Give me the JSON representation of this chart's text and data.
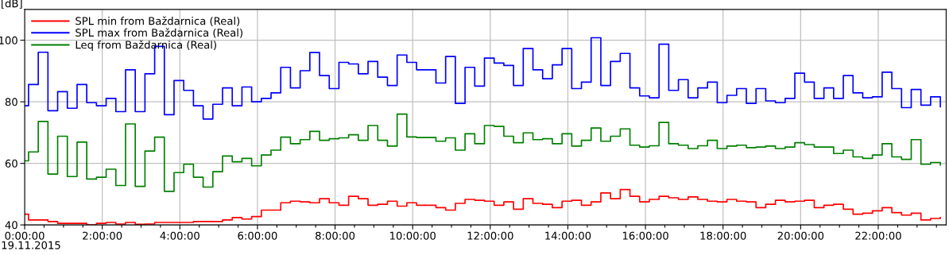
{
  "chart_data": {
    "type": "step",
    "ylabel": "[dB]",
    "annotations": [
      "19.11.2015"
    ],
    "x": [
      0,
      0.1,
      0.35,
      0.6,
      0.85,
      1.1,
      1.35,
      1.6,
      1.85,
      2.1,
      2.35,
      2.6,
      2.85,
      3.1,
      3.35,
      3.6,
      3.85,
      4.1,
      4.35,
      4.6,
      4.85,
      5.1,
      5.35,
      5.6,
      5.85,
      6.1,
      6.35,
      6.6,
      6.85,
      7.1,
      7.35,
      7.6,
      7.85,
      8.1,
      8.35,
      8.6,
      8.85,
      9.1,
      9.35,
      9.6,
      9.85,
      10.1,
      10.35,
      10.6,
      10.85,
      11.1,
      11.35,
      11.6,
      11.85,
      12.1,
      12.35,
      12.6,
      12.85,
      13.1,
      13.35,
      13.6,
      13.85,
      14.1,
      14.35,
      14.6,
      14.85,
      15.1,
      15.35,
      15.6,
      15.85,
      16.1,
      16.35,
      16.6,
      16.85,
      17.1,
      17.35,
      17.6,
      17.85,
      18.1,
      18.35,
      18.6,
      18.85,
      19.1,
      19.35,
      19.6,
      19.85,
      20.1,
      20.35,
      20.6,
      20.85,
      21.1,
      21.35,
      21.6,
      21.85,
      22.1,
      22.35,
      22.6,
      22.85,
      23.1,
      23.35,
      23.6
    ],
    "series": [
      {
        "name": "SPL min from Baždarnica (Real)",
        "color": "#ff0000",
        "values": [
          43.5,
          41.6,
          41.6,
          41.1,
          40.5,
          40.5,
          40.5,
          40.0,
          40.5,
          40.8,
          40.3,
          40.8,
          40.2,
          40.3,
          40.8,
          40.8,
          40.8,
          40.8,
          41.1,
          41.1,
          41.1,
          41.6,
          42.4,
          41.9,
          42.7,
          44.8,
          44.8,
          47.2,
          47.7,
          47.5,
          47.2,
          48.5,
          47.2,
          46.4,
          49.3,
          48.5,
          46.4,
          46.7,
          47.7,
          46.1,
          47.2,
          46.4,
          46.4,
          45.6,
          44.8,
          47.0,
          48.3,
          48.0,
          47.7,
          46.4,
          47.5,
          45.1,
          48.5,
          47.0,
          46.7,
          45.6,
          47.7,
          48.0,
          46.4,
          47.5,
          50.4,
          48.5,
          51.5,
          49.3,
          47.5,
          48.3,
          49.3,
          48.8,
          48.3,
          49.1,
          48.3,
          47.7,
          47.5,
          48.3,
          47.7,
          47.5,
          45.6,
          46.7,
          48.0,
          47.5,
          47.7,
          48.0,
          45.6,
          46.4,
          46.7,
          45.1,
          43.5,
          43.8,
          44.6,
          45.6,
          44.0,
          43.2,
          43.8,
          41.6,
          42.1,
          42.4
        ]
      },
      {
        "name": "SPL max from Baždarnica (Real)",
        "color": "#0000ff",
        "values": [
          78.7,
          85.6,
          96.1,
          77.1,
          83.3,
          77.9,
          85.6,
          79.7,
          78.7,
          81.1,
          76.8,
          90.4,
          76.8,
          89.1,
          98.0,
          75.8,
          86.9,
          83.7,
          78.7,
          74.4,
          79.2,
          84.5,
          78.7,
          84.8,
          80.0,
          81.1,
          82.9,
          91.2,
          84.5,
          90.1,
          96.0,
          88.5,
          84.3,
          92.8,
          92.3,
          89.1,
          93.1,
          88.0,
          85.3,
          95.2,
          92.8,
          90.4,
          90.4,
          86.1,
          94.7,
          79.5,
          91.2,
          85.1,
          94.2,
          92.6,
          91.8,
          85.3,
          97.3,
          90.4,
          87.5,
          92.0,
          97.3,
          84.3,
          86.4,
          100.8,
          85.3,
          93.1,
          95.7,
          84.5,
          81.9,
          81.3,
          98.7,
          83.7,
          87.2,
          81.3,
          84.5,
          86.4,
          79.7,
          82.1,
          84.3,
          79.5,
          84.3,
          80.3,
          79.7,
          81.1,
          89.3,
          86.4,
          81.1,
          84.5,
          81.1,
          88.5,
          82.9,
          81.3,
          81.6,
          89.6,
          84.3,
          78.1,
          84.0,
          78.9,
          81.6,
          78.4
        ]
      },
      {
        "name": "Leq from Baždarnica (Real)",
        "color": "#008000",
        "values": [
          60.8,
          63.7,
          73.6,
          56.5,
          68.8,
          55.7,
          66.9,
          54.9,
          55.5,
          58.1,
          52.8,
          72.8,
          52.5,
          64.0,
          68.5,
          50.9,
          57.0,
          59.7,
          55.5,
          52.3,
          57.3,
          62.4,
          60.5,
          61.6,
          59.2,
          62.7,
          64.3,
          68.5,
          66.4,
          67.7,
          70.4,
          67.5,
          68.0,
          68.3,
          69.3,
          67.5,
          72.3,
          67.5,
          65.6,
          76.0,
          68.6,
          68.4,
          68.4,
          67.2,
          68.3,
          64.3,
          69.6,
          66.4,
          72.3,
          72.0,
          68.8,
          66.7,
          69.9,
          67.7,
          68.0,
          66.4,
          69.6,
          65.6,
          67.5,
          71.5,
          67.2,
          68.8,
          71.2,
          65.9,
          65.3,
          65.7,
          73.3,
          66.4,
          65.9,
          64.8,
          65.7,
          67.5,
          64.8,
          65.6,
          65.9,
          65.1,
          65.3,
          65.6,
          64.8,
          65.3,
          66.7,
          66.1,
          65.3,
          65.3,
          63.2,
          64.3,
          62.1,
          61.6,
          62.7,
          66.4,
          62.1,
          61.3,
          67.7,
          59.7,
          60.3,
          59.5
        ]
      }
    ],
    "xlim": [
      0,
      23.75
    ],
    "ylim": [
      40,
      110
    ],
    "xticks": [
      {
        "value": 0,
        "label": "0:00:00"
      },
      {
        "value": 0.5,
        "label": null
      },
      {
        "value": 1,
        "label": null
      },
      {
        "value": 1.5,
        "label": null
      },
      {
        "value": 2,
        "label": "2:00:00"
      },
      {
        "value": 2.5,
        "label": null
      },
      {
        "value": 3,
        "label": null
      },
      {
        "value": 3.5,
        "label": null
      },
      {
        "value": 4,
        "label": "4:00:00"
      },
      {
        "value": 4.5,
        "label": null
      },
      {
        "value": 5,
        "label": null
      },
      {
        "value": 5.5,
        "label": null
      },
      {
        "value": 6,
        "label": "6:00:00"
      },
      {
        "value": 6.5,
        "label": null
      },
      {
        "value": 7,
        "label": null
      },
      {
        "value": 7.5,
        "label": null
      },
      {
        "value": 8,
        "label": "8:00:00"
      },
      {
        "value": 8.5,
        "label": null
      },
      {
        "value": 9,
        "label": null
      },
      {
        "value": 9.5,
        "label": null
      },
      {
        "value": 10,
        "label": "10:00:00"
      },
      {
        "value": 10.5,
        "label": null
      },
      {
        "value": 11,
        "label": null
      },
      {
        "value": 11.5,
        "label": null
      },
      {
        "value": 12,
        "label": "12:00:00"
      },
      {
        "value": 12.5,
        "label": null
      },
      {
        "value": 13,
        "label": null
      },
      {
        "value": 13.5,
        "label": null
      },
      {
        "value": 14,
        "label": "14:00:00"
      },
      {
        "value": 14.5,
        "label": null
      },
      {
        "value": 15,
        "label": null
      },
      {
        "value": 15.5,
        "label": null
      },
      {
        "value": 16,
        "label": "16:00:00"
      },
      {
        "value": 16.5,
        "label": null
      },
      {
        "value": 17,
        "label": null
      },
      {
        "value": 17.5,
        "label": null
      },
      {
        "value": 18,
        "label": "18:00:00"
      },
      {
        "value": 18.5,
        "label": null
      },
      {
        "value": 19,
        "label": null
      },
      {
        "value": 19.5,
        "label": null
      },
      {
        "value": 20,
        "label": "20:00:00"
      },
      {
        "value": 20.5,
        "label": null
      },
      {
        "value": 21,
        "label": null
      },
      {
        "value": 21.5,
        "label": null
      },
      {
        "value": 22,
        "label": "22:00:00"
      },
      {
        "value": 22.5,
        "label": null
      },
      {
        "value": 23,
        "label": null
      },
      {
        "value": 23.5,
        "label": null
      }
    ],
    "yticks": [
      40,
      60,
      80,
      100
    ],
    "grid": true,
    "legend": "top left"
  }
}
